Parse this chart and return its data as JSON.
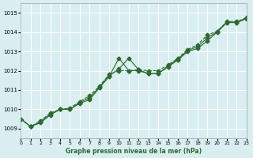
{
  "bg_color": "#d8eef0",
  "grid_color": "#ffffff",
  "line_color": "#2d6a2d",
  "marker_color": "#2d6a2d",
  "xlabel": "Graphe pression niveau de la mer (hPa)",
  "ylim": [
    1008.5,
    1015.5
  ],
  "xlim": [
    0,
    23
  ],
  "yticks": [
    1009,
    1010,
    1011,
    1012,
    1013,
    1014,
    1015
  ],
  "xticks": [
    0,
    1,
    2,
    3,
    4,
    5,
    6,
    7,
    8,
    9,
    10,
    11,
    12,
    13,
    14,
    15,
    16,
    17,
    18,
    19,
    20,
    21,
    22,
    23
  ],
  "series1": {
    "x": [
      0,
      1,
      2,
      3,
      4,
      5,
      6,
      7,
      8,
      9,
      10,
      11,
      12,
      13,
      14,
      15,
      16,
      17,
      18,
      19,
      20,
      21,
      22,
      23
    ],
    "y": [
      1009.5,
      1009.1,
      1009.3,
      1009.7,
      1010.0,
      1010.0,
      1010.3,
      1010.5,
      1011.1,
      1011.7,
      1012.65,
      1012.0,
      1012.0,
      1011.85,
      1011.85,
      1012.2,
      1012.55,
      1013.0,
      1013.15,
      1013.55,
      1014.0,
      1014.5,
      1014.5,
      1014.7
    ],
    "linestyle": "-"
  },
  "series2": {
    "x": [
      0,
      1,
      2,
      3,
      4,
      5,
      6,
      7,
      8,
      9,
      10,
      11,
      12,
      13,
      14,
      15,
      16,
      17,
      18,
      19,
      20,
      21,
      22,
      23
    ],
    "y": [
      1009.5,
      1009.1,
      1009.4,
      1009.8,
      1010.0,
      1010.05,
      1010.4,
      1010.7,
      1011.2,
      1011.8,
      1012.0,
      1012.0,
      1012.05,
      1012.0,
      1012.0,
      1012.3,
      1012.65,
      1013.1,
      1013.35,
      1013.85,
      1014.05,
      1014.55,
      1014.55,
      1014.75
    ],
    "linestyle": "--"
  },
  "series3": {
    "x": [
      0,
      1,
      2,
      3,
      4,
      5,
      6,
      7,
      8,
      9,
      10,
      11,
      12,
      13,
      14,
      15,
      16,
      17,
      18,
      19,
      20,
      21,
      22,
      23
    ],
    "y": [
      1009.5,
      1009.1,
      1009.35,
      1009.75,
      1010.0,
      1010.0,
      1010.35,
      1010.6,
      1011.15,
      1011.75,
      1012.1,
      1012.65,
      1012.05,
      1011.85,
      1011.85,
      1012.25,
      1012.6,
      1013.05,
      1013.25,
      1013.7,
      1014.03,
      1014.53,
      1014.53,
      1014.73
    ],
    "linestyle": "-"
  }
}
